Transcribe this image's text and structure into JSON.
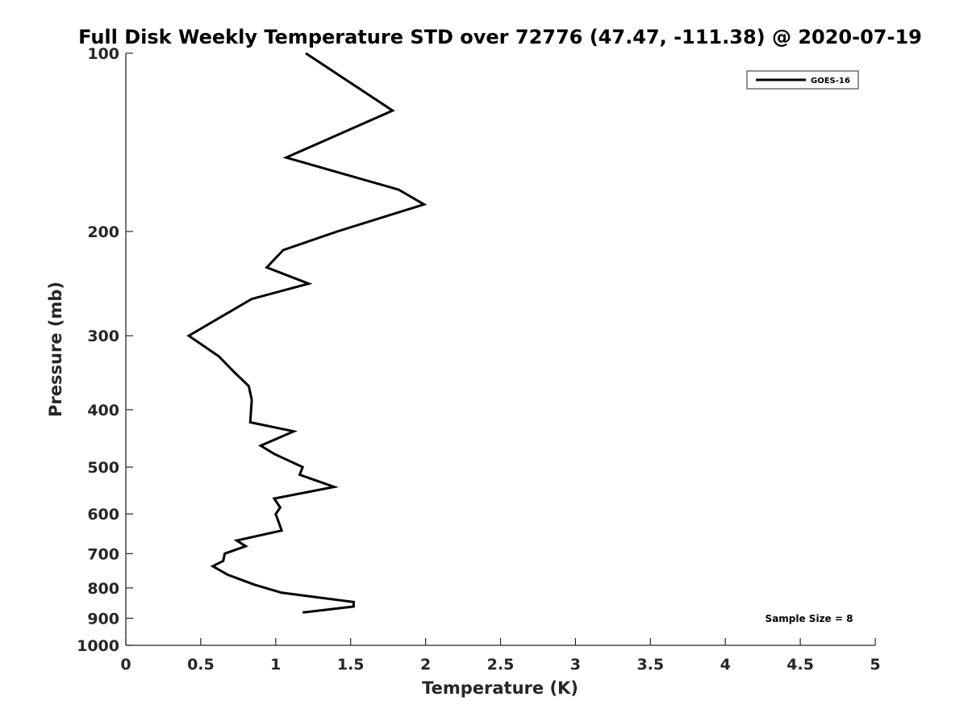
{
  "chart_data": {
    "type": "line",
    "title": "Full Disk Weekly Temperature STD over 72776 (47.47, -111.38) @ 2020-07-19",
    "xlabel": "Temperature (K)",
    "ylabel": "Pressure (mb)",
    "xlim": [
      0,
      5
    ],
    "ylim": [
      100,
      1000
    ],
    "y_scale": "log",
    "y_reversed": true,
    "x_ticks": [
      "0",
      "0.5",
      "1",
      "1.5",
      "2",
      "2.5",
      "3",
      "3.5",
      "4",
      "4.5",
      "5"
    ],
    "x_tick_values": [
      0,
      0.5,
      1,
      1.5,
      2,
      2.5,
      3,
      3.5,
      4,
      4.5,
      5
    ],
    "y_ticks": [
      "100",
      "200",
      "300",
      "400",
      "500",
      "600",
      "700",
      "800",
      "900",
      "1000"
    ],
    "y_tick_values": [
      100,
      200,
      300,
      400,
      500,
      600,
      700,
      800,
      900,
      1000
    ],
    "grid": false,
    "legend_position": "top-right",
    "annotations": [
      {
        "text": "Sample Size = 8",
        "position": "bottom-right"
      }
    ],
    "series": [
      {
        "name": "GOES-16",
        "color": "#000000",
        "points": [
          {
            "x": 1.2,
            "y": 100
          },
          {
            "x": 1.78,
            "y": 125
          },
          {
            "x": 1.07,
            "y": 150
          },
          {
            "x": 1.82,
            "y": 170
          },
          {
            "x": 1.99,
            "y": 180
          },
          {
            "x": 1.41,
            "y": 200
          },
          {
            "x": 1.05,
            "y": 215
          },
          {
            "x": 0.94,
            "y": 230
          },
          {
            "x": 1.22,
            "y": 245
          },
          {
            "x": 0.84,
            "y": 260
          },
          {
            "x": 0.42,
            "y": 300
          },
          {
            "x": 0.62,
            "y": 325
          },
          {
            "x": 0.72,
            "y": 345
          },
          {
            "x": 0.82,
            "y": 365
          },
          {
            "x": 0.84,
            "y": 385
          },
          {
            "x": 0.83,
            "y": 420
          },
          {
            "x": 1.12,
            "y": 435
          },
          {
            "x": 0.9,
            "y": 460
          },
          {
            "x": 0.99,
            "y": 475
          },
          {
            "x": 1.18,
            "y": 500
          },
          {
            "x": 1.16,
            "y": 515
          },
          {
            "x": 1.39,
            "y": 540
          },
          {
            "x": 0.99,
            "y": 565
          },
          {
            "x": 1.03,
            "y": 585
          },
          {
            "x": 1.0,
            "y": 600
          },
          {
            "x": 1.04,
            "y": 640
          },
          {
            "x": 0.74,
            "y": 665
          },
          {
            "x": 0.8,
            "y": 680
          },
          {
            "x": 0.66,
            "y": 700
          },
          {
            "x": 0.65,
            "y": 720
          },
          {
            "x": 0.58,
            "y": 735
          },
          {
            "x": 0.68,
            "y": 760
          },
          {
            "x": 0.86,
            "y": 790
          },
          {
            "x": 1.04,
            "y": 815
          },
          {
            "x": 1.52,
            "y": 845
          },
          {
            "x": 1.52,
            "y": 860
          },
          {
            "x": 1.18,
            "y": 880
          }
        ]
      }
    ]
  }
}
